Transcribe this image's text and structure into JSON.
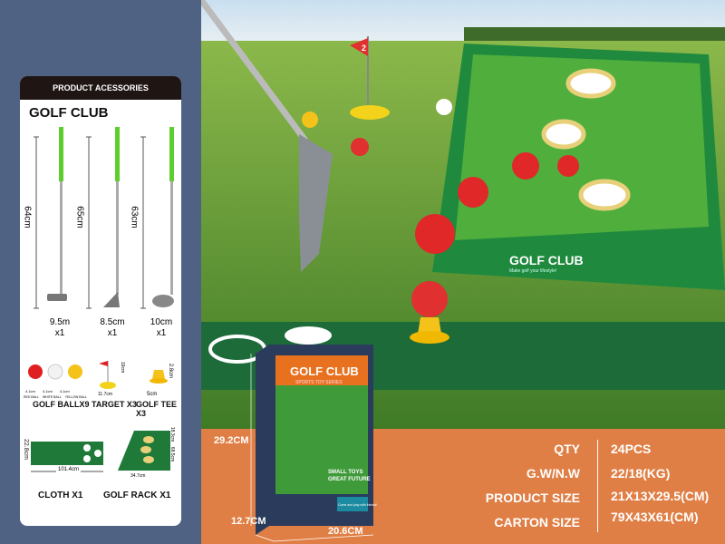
{
  "panel": {
    "header": "PRODUCT ACESSORIES",
    "title": "GOLF CLUB",
    "clubs": [
      {
        "length": "64cm",
        "head": "9.5m",
        "qty": "x1"
      },
      {
        "length": "65cm",
        "head": "8.5cm",
        "qty": "x1"
      },
      {
        "length": "63cm",
        "head": "10cm",
        "qty": "x1"
      }
    ],
    "balls": {
      "sizes": [
        "4.1cm",
        "4.1cm",
        "4.1cm"
      ],
      "names": [
        "RED BALL",
        "WHITE BALL",
        "YELLOW BALL"
      ],
      "label": "GOLF BALLX9"
    },
    "target": {
      "height": "19cm",
      "width": "11.7cm",
      "label": "TARGET X3"
    },
    "tee": {
      "height": "2.8cm",
      "width": "5cm",
      "label": "GOLF TEE X3"
    },
    "cloth": {
      "height": "22.8cm",
      "width": "101.4cm",
      "label": "CLOTH X1"
    },
    "rack": {
      "h1": "18.3cm",
      "h2": "68.5cm",
      "width": "34.7cm",
      "label": "GOLF RACK X1"
    }
  },
  "scene": {
    "flag_number": "2",
    "rack_brand": "GOLF CLUB",
    "rack_tagline": "Make golf your lifestyle!",
    "mat_brand": "GOLF CLUB"
  },
  "box": {
    "title": "GOLF CLUB",
    "subtitle": "SPORTS TOY SERIES",
    "badge1": "SMALL TOYS",
    "badge2": "GREAT FUTURE",
    "side_note": "Come and play with friends!",
    "height": "29.2CM",
    "depth": "12.7CM",
    "width": "20.6CM"
  },
  "specs": [
    {
      "label": "QTY",
      "value": "24PCS"
    },
    {
      "label": "G.W/N.W",
      "value": "22/18(KG)"
    },
    {
      "label": "PRODUCT SIZE",
      "value": "21X13X29.5(CM)"
    },
    {
      "label": "CARTON SIZE",
      "value": "79X43X61(CM)"
    }
  ],
  "colors": {
    "panel_bg": "#4f6283",
    "header_bg": "#1f1614",
    "orange": "#e07f45",
    "grass": "#4f8a2e",
    "mat": "#1e6b3a",
    "grip": "#5ccf2e"
  }
}
